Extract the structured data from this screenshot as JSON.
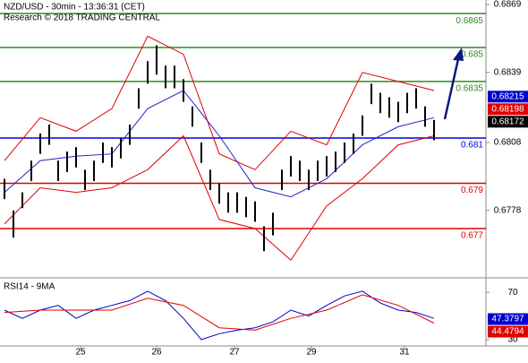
{
  "chart_data": [
    {
      "type": "hilo",
      "title": "NZD/USD - 30min - 13:36:31 (CET)",
      "subtitle": "Research © 2018 TRADING CENTRAL",
      "bar_color": "#000000",
      "xlim": [
        -0.5,
        53.8
      ],
      "ylim": [
        0.6749,
        0.6871
      ],
      "yticks": [
        0.6869,
        0.6839,
        0.6808,
        0.6778
      ],
      "x": [
        0,
        1,
        2,
        3,
        4,
        5,
        6,
        7,
        8,
        9,
        10,
        11,
        12,
        13,
        14,
        15,
        16,
        17,
        18,
        19,
        20,
        21,
        22,
        23,
        24,
        25,
        26,
        27,
        28,
        29,
        30,
        31,
        32,
        33,
        34,
        35,
        36,
        37,
        38,
        39,
        40,
        41,
        42,
        43,
        44,
        45,
        46,
        47,
        48
      ],
      "high": [
        0.6792,
        0.6778,
        0.6786,
        0.68,
        0.6812,
        0.6816,
        0.68,
        0.6804,
        0.6806,
        0.6796,
        0.68,
        0.6808,
        0.6806,
        0.681,
        0.6816,
        0.6832,
        0.6844,
        0.6851,
        0.6842,
        0.6842,
        0.6836,
        0.6824,
        0.6808,
        0.6796,
        0.679,
        0.6786,
        0.6786,
        0.6784,
        0.6782,
        0.6771,
        0.6777,
        0.6796,
        0.6802,
        0.68,
        0.6796,
        0.68,
        0.6802,
        0.6804,
        0.6808,
        0.6812,
        0.682,
        0.6834,
        0.683,
        0.6828,
        0.6826,
        0.683,
        0.6832,
        0.6824,
        0.6818
      ],
      "low": [
        0.6783,
        0.6766,
        0.6779,
        0.6791,
        0.6803,
        0.6807,
        0.6791,
        0.6795,
        0.6797,
        0.6787,
        0.6791,
        0.6799,
        0.6797,
        0.6801,
        0.6807,
        0.6823,
        0.6834,
        0.6838,
        0.6832,
        0.6832,
        0.6826,
        0.6815,
        0.6799,
        0.6787,
        0.6781,
        0.6777,
        0.6777,
        0.6775,
        0.6773,
        0.676,
        0.6767,
        0.6787,
        0.6793,
        0.6791,
        0.6787,
        0.6791,
        0.6793,
        0.6795,
        0.6799,
        0.6803,
        0.6811,
        0.6825,
        0.6821,
        0.6819,
        0.6817,
        0.6821,
        0.6823,
        0.6815,
        0.6809
      ],
      "bands": [
        {
          "color": "#e00000",
          "x": [
            0,
            4,
            8,
            12,
            16,
            20,
            24,
            28,
            32,
            36,
            40,
            44,
            48
          ],
          "values": [
            0.68,
            0.6819,
            0.6813,
            0.6823,
            0.6855,
            0.6847,
            0.6803,
            0.6796,
            0.6813,
            0.6807,
            0.6839,
            0.6835,
            0.6831
          ]
        },
        {
          "color": "#e00000",
          "x": [
            0,
            4,
            8,
            12,
            16,
            20,
            24,
            28,
            32,
            36,
            40,
            44,
            48
          ],
          "values": [
            0.6772,
            0.6788,
            0.6786,
            0.6788,
            0.6796,
            0.6811,
            0.6774,
            0.677,
            0.6756,
            0.678,
            0.6792,
            0.6807,
            0.6811
          ]
        },
        {
          "color": "#2222cc",
          "x": [
            0,
            4,
            8,
            12,
            16,
            20,
            24,
            28,
            32,
            36,
            40,
            44,
            48
          ],
          "values": [
            0.6786,
            0.68,
            0.6802,
            0.6803,
            0.6823,
            0.6831,
            0.6811,
            0.6788,
            0.6784,
            0.6792,
            0.6807,
            0.6815,
            0.6819
          ]
        }
      ],
      "levels": [
        {
          "value": 0.6865,
          "color": "#2e8b22"
        },
        {
          "value": 0.685,
          "color": "#2e8b22"
        },
        {
          "value": 0.6835,
          "color": "#2e8b22"
        },
        {
          "value": 0.681,
          "color": "#0000dd"
        },
        {
          "value": 0.679,
          "color": "#e00000"
        },
        {
          "value": 0.677,
          "color": "#e00000"
        }
      ],
      "price_labels": [
        {
          "value": 0.68215,
          "color": "#0000cc"
        },
        {
          "value": 0.68198,
          "color": "#e00000"
        },
        {
          "value": 0.68172,
          "color": "#000000"
        }
      ]
    },
    {
      "type": "line",
      "title": "RSI14 - 9MA",
      "xlim": [
        -0.5,
        53.8
      ],
      "xticks": [
        {
          "value": 8.5,
          "label": "25"
        },
        {
          "value": 17,
          "label": "26"
        },
        {
          "value": 25.7,
          "label": "27"
        },
        {
          "value": 34.3,
          "label": "29"
        },
        {
          "value": 44.7,
          "label": "31"
        }
      ],
      "ylim": [
        24.6,
        80.8
      ],
      "yticks": [
        70,
        30
      ],
      "series": [
        {
          "color": "#0000cc",
          "x": [
            0,
            2,
            4,
            6,
            8,
            10,
            12,
            14,
            16,
            18,
            20,
            22,
            24,
            26,
            28,
            30,
            32,
            34,
            36,
            38,
            40,
            42,
            44,
            46,
            48
          ],
          "values": [
            55,
            48,
            55,
            59,
            48,
            55,
            59,
            63,
            71,
            63,
            48,
            30,
            35,
            38,
            40,
            45,
            55,
            50,
            59,
            67,
            71,
            61,
            55,
            53,
            48
          ]
        },
        {
          "color": "#e00000",
          "x": [
            0,
            4,
            8,
            12,
            16,
            20,
            24,
            28,
            32,
            36,
            40,
            44,
            48
          ],
          "values": [
            53,
            55,
            55,
            55,
            65,
            59,
            40,
            38,
            48,
            55,
            68,
            59,
            44
          ]
        }
      ],
      "value_boxes": [
        {
          "value": 47.3797,
          "color": "#0000cc"
        },
        {
          "value": 44.4794,
          "color": "#e00000"
        }
      ]
    }
  ]
}
